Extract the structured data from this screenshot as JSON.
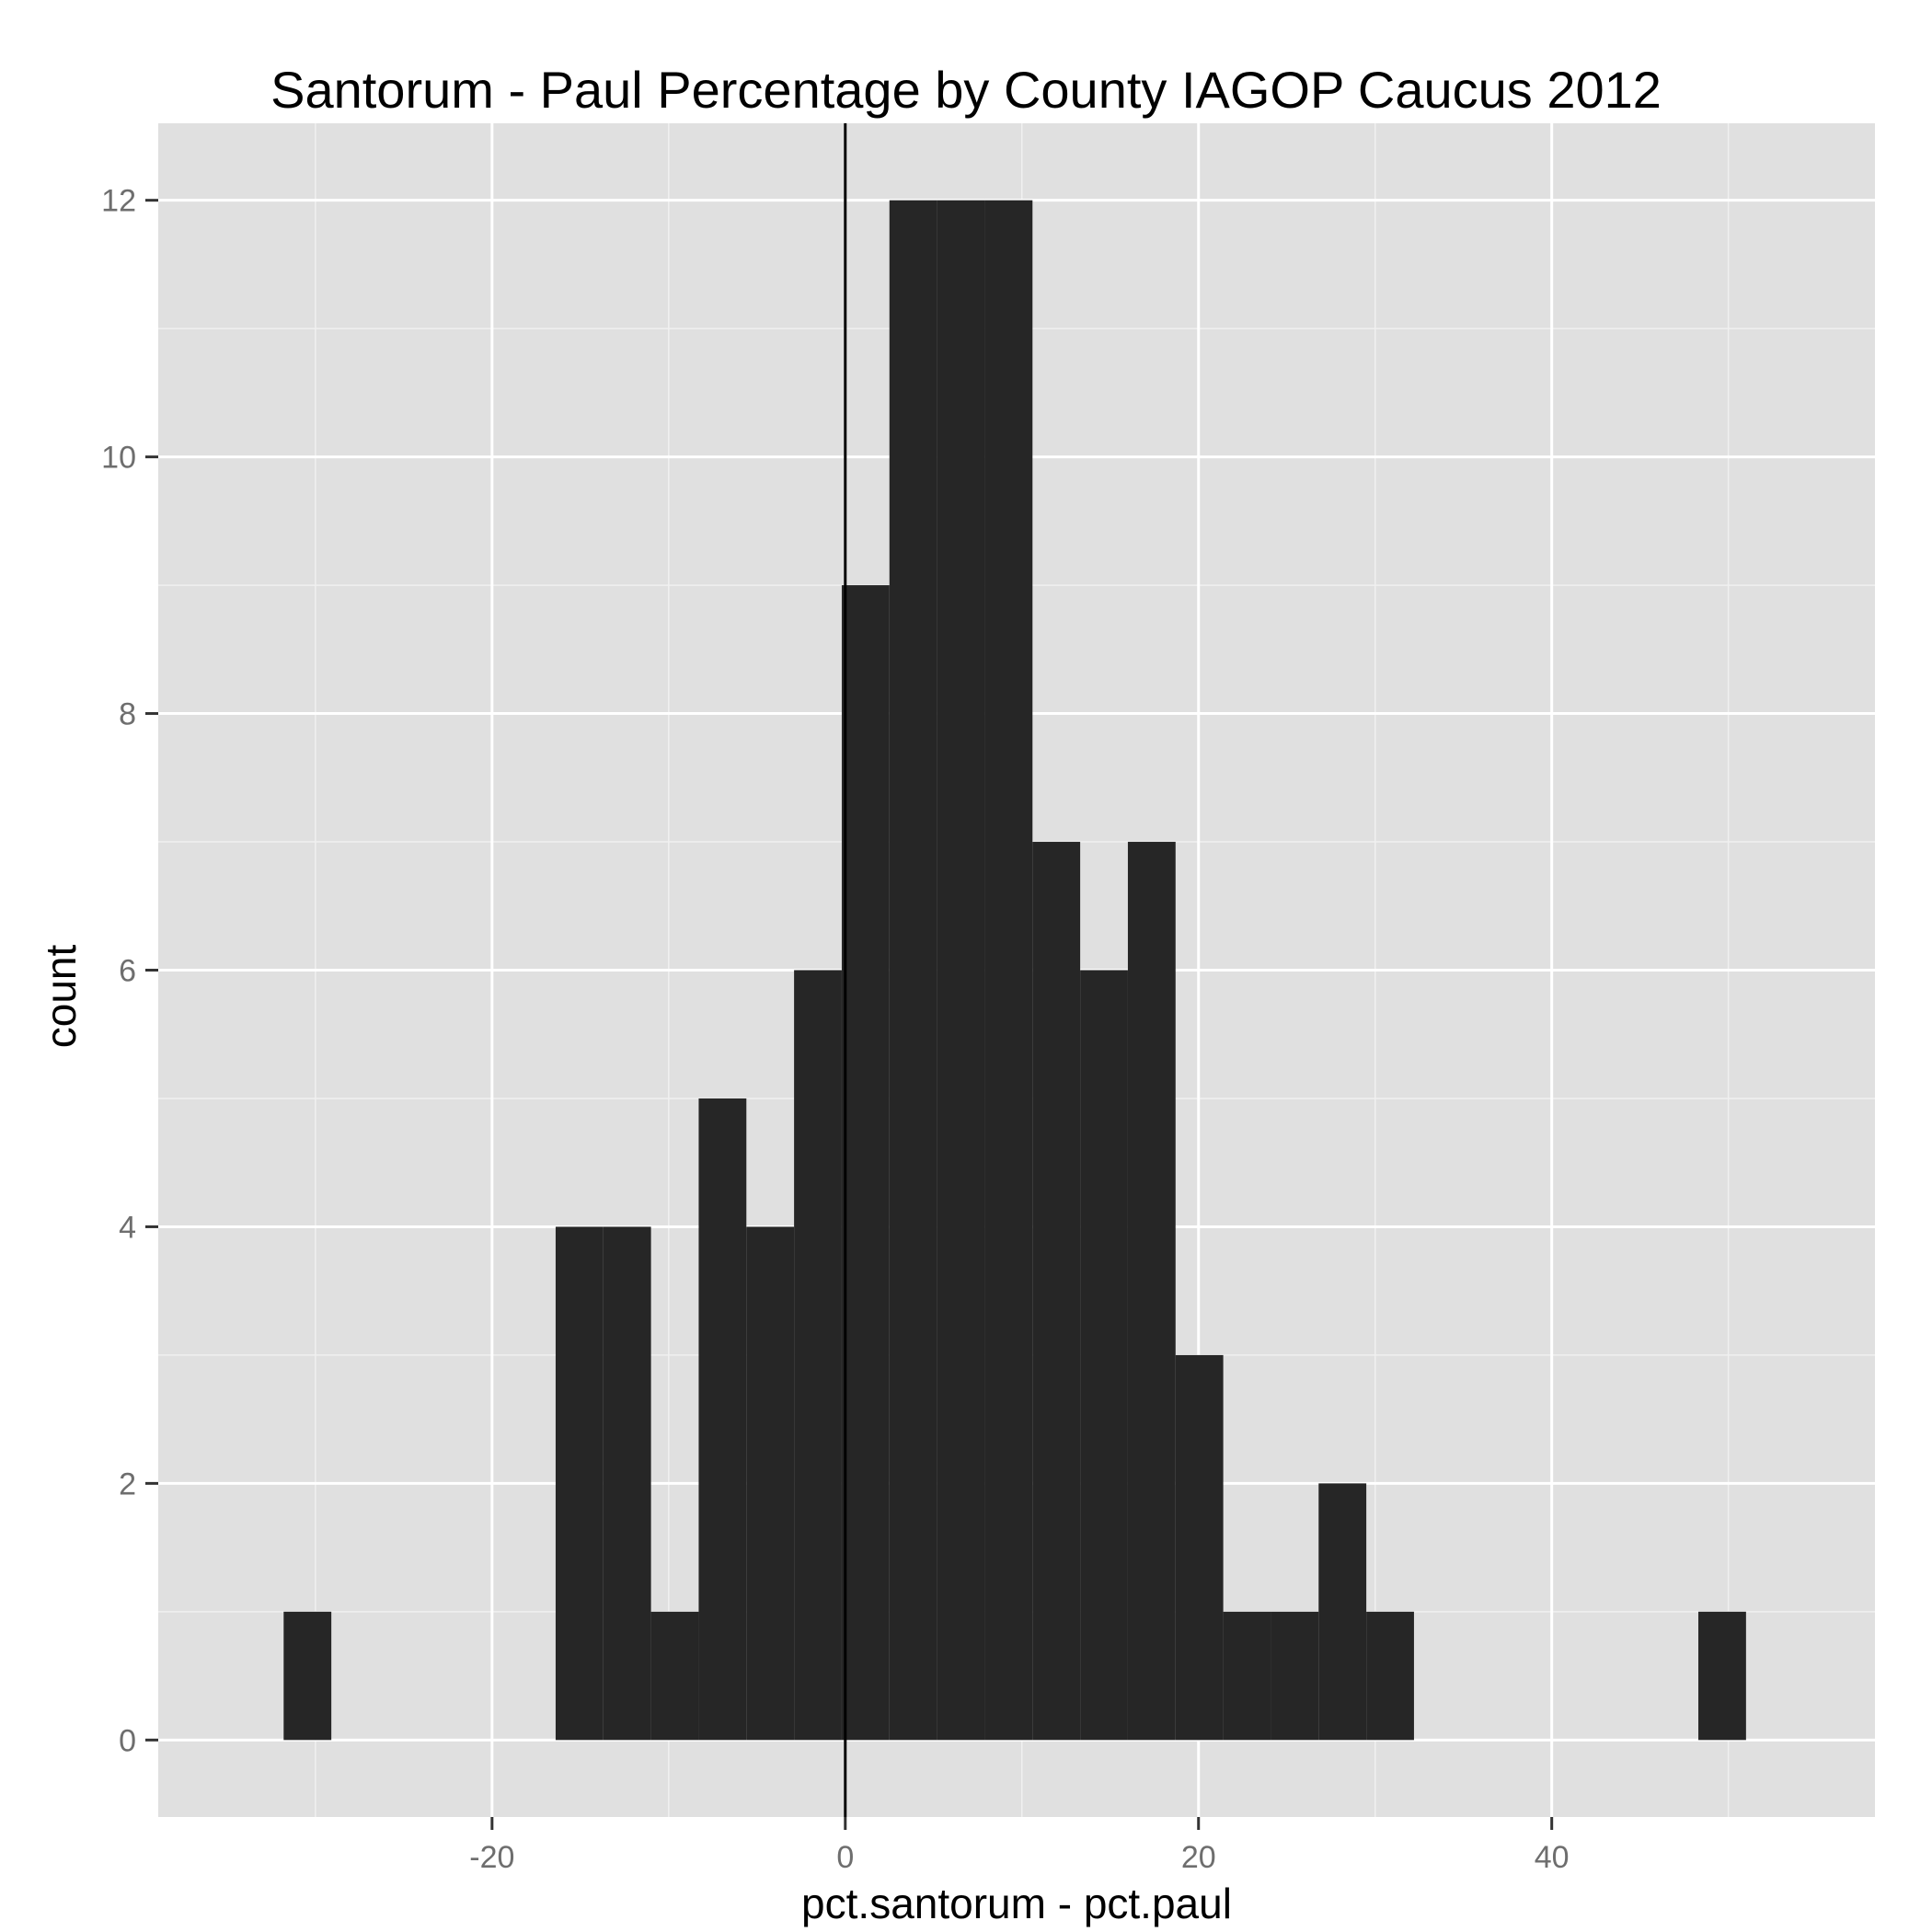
{
  "chart_data": {
    "type": "bar",
    "title": "Santorum - Paul Percentage by County IAGOP Caucus 2012",
    "xlabel": "pct.santorum - pct.paul",
    "ylabel": "count",
    "xlim": [
      -38.9,
      58.3
    ],
    "ylim": [
      -0.6,
      12.6
    ],
    "x_ticks": [
      -20,
      0,
      20,
      40
    ],
    "x_tick_labels": [
      "-20",
      "0",
      "20",
      "40"
    ],
    "y_ticks": [
      0,
      2,
      4,
      6,
      8,
      10,
      12
    ],
    "y_tick_labels": [
      "0",
      "2",
      "4",
      "6",
      "8",
      "10",
      "12"
    ],
    "grid": true,
    "reference_line_x": 0,
    "bin_width": 2.68,
    "bins": [
      {
        "x0": -31.8,
        "x1": -29.1,
        "count": 1
      },
      {
        "x0": -16.4,
        "x1": -13.7,
        "count": 4
      },
      {
        "x0": -13.7,
        "x1": -11.0,
        "count": 4
      },
      {
        "x0": -11.0,
        "x1": -8.3,
        "count": 1
      },
      {
        "x0": -8.3,
        "x1": -5.6,
        "count": 5
      },
      {
        "x0": -5.6,
        "x1": -2.9,
        "count": 4
      },
      {
        "x0": -2.9,
        "x1": -0.2,
        "count": 6
      },
      {
        "x0": -0.2,
        "x1": 2.5,
        "count": 9
      },
      {
        "x0": 2.5,
        "x1": 5.2,
        "count": 12
      },
      {
        "x0": 5.2,
        "x1": 7.9,
        "count": 12
      },
      {
        "x0": 7.9,
        "x1": 10.6,
        "count": 12
      },
      {
        "x0": 10.6,
        "x1": 13.3,
        "count": 7
      },
      {
        "x0": 13.3,
        "x1": 16.0,
        "count": 6
      },
      {
        "x0": 16.0,
        "x1": 18.7,
        "count": 7
      },
      {
        "x0": 18.7,
        "x1": 21.4,
        "count": 3
      },
      {
        "x0": 21.4,
        "x1": 24.1,
        "count": 1
      },
      {
        "x0": 24.1,
        "x1": 26.8,
        "count": 1
      },
      {
        "x0": 26.8,
        "x1": 29.5,
        "count": 2
      },
      {
        "x0": 29.5,
        "x1": 32.2,
        "count": 1
      },
      {
        "x0": 48.3,
        "x1": 51.0,
        "count": 1
      }
    ],
    "colors": {
      "panel": "#E0E0E0",
      "grid_major": "#FFFFFF",
      "grid_minor": "#F0F0F0",
      "bar": "#262626",
      "ref_line": "#000000",
      "tick_text": "#6E6E6E",
      "axis_title": "#000000"
    }
  }
}
